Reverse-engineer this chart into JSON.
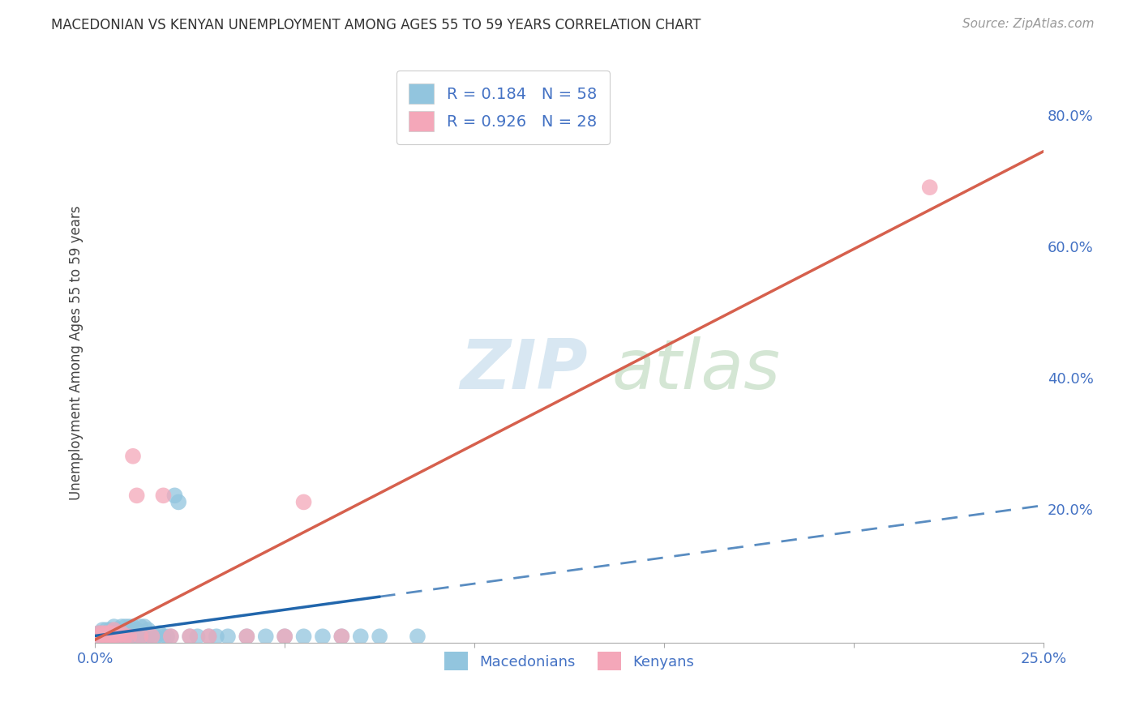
{
  "title": "MACEDONIAN VS KENYAN UNEMPLOYMENT AMONG AGES 55 TO 59 YEARS CORRELATION CHART",
  "source": "Source: ZipAtlas.com",
  "ylabel": "Unemployment Among Ages 55 to 59 years",
  "xlim": [
    0.0,
    0.25
  ],
  "ylim": [
    -0.005,
    0.88
  ],
  "watermark_zip": "ZIP",
  "watermark_atlas": "atlas",
  "legend_macedonians": "Macedonians",
  "legend_kenyans": "Kenyans",
  "R_macedonians": 0.184,
  "N_macedonians": 58,
  "R_kenyans": 0.926,
  "N_kenyans": 28,
  "color_macedonians": "#92c5de",
  "color_kenyans": "#f4a7b9",
  "color_macedonians_line": "#2166ac",
  "color_kenyans_line": "#d6604d",
  "color_text_blue": "#4472c4",
  "color_grid": "#d0d0d0",
  "mac_line_solid_end": 0.075,
  "mac_line_dash_end": 0.25,
  "mac_line_y_at_0": 0.006,
  "mac_line_y_at_075": 0.075,
  "mac_line_y_at_25": 0.205,
  "ken_line_y_at_0": 0.0,
  "ken_line_y_at_25": 0.745,
  "macedonians_x": [
    0.001,
    0.001,
    0.002,
    0.002,
    0.003,
    0.003,
    0.003,
    0.004,
    0.004,
    0.004,
    0.005,
    0.005,
    0.005,
    0.006,
    0.006,
    0.006,
    0.007,
    0.007,
    0.007,
    0.008,
    0.008,
    0.008,
    0.009,
    0.009,
    0.009,
    0.01,
    0.01,
    0.01,
    0.011,
    0.011,
    0.012,
    0.012,
    0.013,
    0.013,
    0.014,
    0.014,
    0.015,
    0.016,
    0.017,
    0.018,
    0.019,
    0.02,
    0.021,
    0.022,
    0.025,
    0.027,
    0.03,
    0.032,
    0.035,
    0.04,
    0.045,
    0.05,
    0.055,
    0.06,
    0.065,
    0.07,
    0.075,
    0.085
  ],
  "macedonians_y": [
    0.005,
    0.01,
    0.005,
    0.015,
    0.005,
    0.01,
    0.015,
    0.005,
    0.01,
    0.015,
    0.005,
    0.01,
    0.02,
    0.005,
    0.01,
    0.015,
    0.005,
    0.01,
    0.02,
    0.005,
    0.01,
    0.02,
    0.005,
    0.01,
    0.02,
    0.005,
    0.01,
    0.02,
    0.005,
    0.015,
    0.005,
    0.02,
    0.005,
    0.02,
    0.005,
    0.015,
    0.005,
    0.005,
    0.01,
    0.005,
    0.005,
    0.005,
    0.22,
    0.21,
    0.005,
    0.005,
    0.005,
    0.005,
    0.005,
    0.005,
    0.005,
    0.005,
    0.005,
    0.005,
    0.005,
    0.005,
    0.005,
    0.005
  ],
  "kenyans_x": [
    0.001,
    0.001,
    0.002,
    0.002,
    0.003,
    0.003,
    0.004,
    0.004,
    0.005,
    0.005,
    0.006,
    0.006,
    0.007,
    0.008,
    0.009,
    0.01,
    0.011,
    0.012,
    0.015,
    0.018,
    0.02,
    0.025,
    0.03,
    0.04,
    0.05,
    0.055,
    0.065,
    0.22
  ],
  "kenyans_y": [
    0.005,
    0.01,
    0.005,
    0.01,
    0.005,
    0.01,
    0.005,
    0.01,
    0.005,
    0.015,
    0.005,
    0.01,
    0.01,
    0.005,
    0.005,
    0.28,
    0.22,
    0.005,
    0.005,
    0.22,
    0.005,
    0.005,
    0.005,
    0.005,
    0.005,
    0.21,
    0.005,
    0.69
  ]
}
